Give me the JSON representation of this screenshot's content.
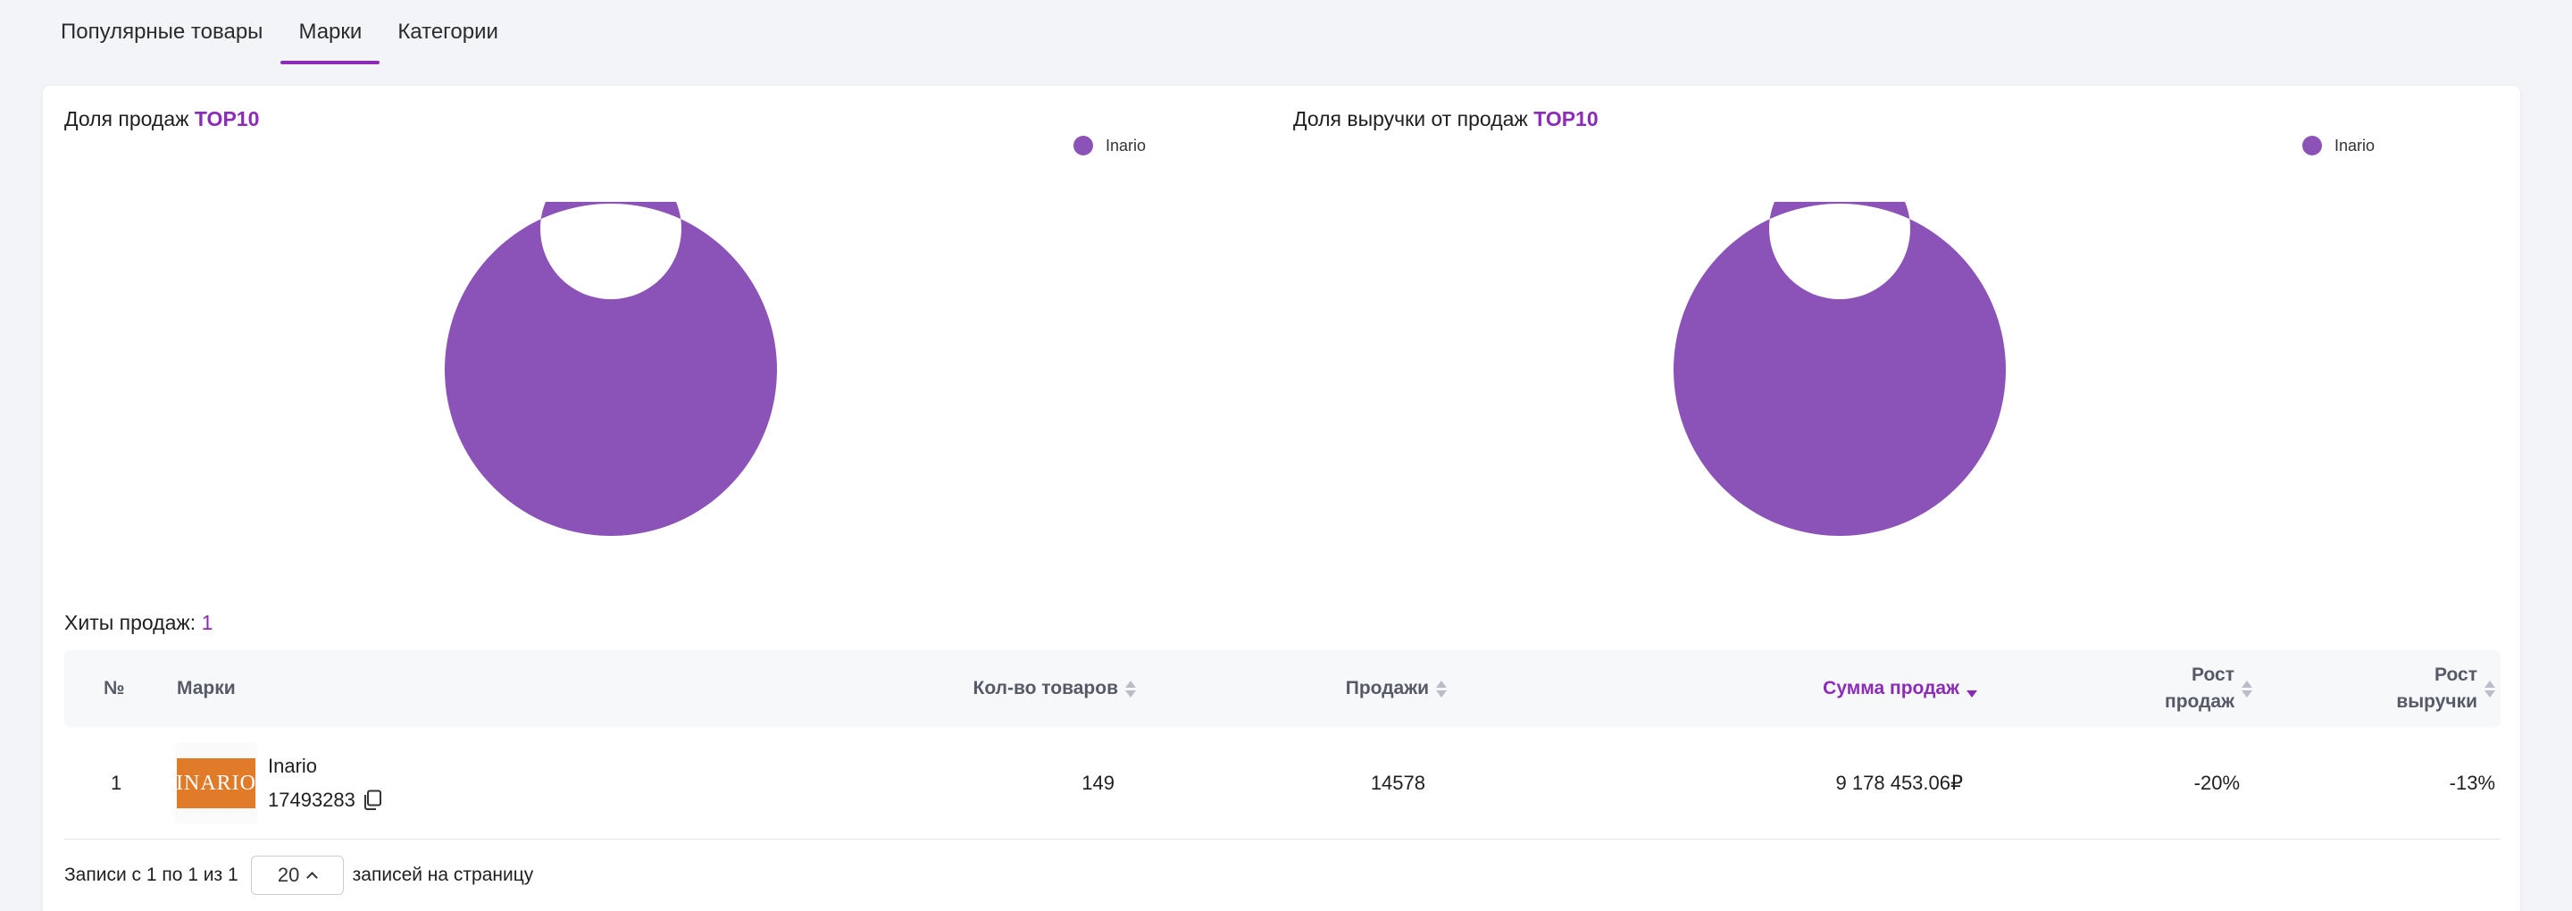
{
  "tabs": [
    {
      "label": "Популярные товары",
      "active": false
    },
    {
      "label": "Марки",
      "active": true
    },
    {
      "label": "Категории",
      "active": false
    }
  ],
  "charts": {
    "sales_share": {
      "title_prefix": "Доля продаж",
      "title_highlight": "TOP10"
    },
    "revenue_share": {
      "title_prefix": "Доля выручки от продаж",
      "title_highlight": "TOP10"
    }
  },
  "chart_data": [
    {
      "type": "pie",
      "title": "Доля продаж TOP10",
      "labels": [
        "Inario"
      ],
      "values": [
        100
      ],
      "colors": [
        "#8b52b8"
      ],
      "legend": "top-right",
      "donut": true
    },
    {
      "type": "pie",
      "title": "Доля выручки от продаж TOP10",
      "labels": [
        "Inario"
      ],
      "values": [
        100
      ],
      "colors": [
        "#8b52b8"
      ],
      "legend": "top-right",
      "donut": true
    }
  ],
  "hits": {
    "label": "Хиты продаж:",
    "count": "1"
  },
  "table": {
    "headers": {
      "num": "№",
      "brand": "Марки",
      "qty": "Кол-во товаров",
      "sales": "Продажи",
      "sum": "Сумма продаж",
      "growth_sales_1": "Рост",
      "growth_sales_2": "продаж",
      "growth_rev_1": "Рост",
      "growth_rev_2": "выручки"
    },
    "rows": [
      {
        "num": "1",
        "logo_text": "INARIO",
        "brand": "Inario",
        "brand_id": "17493283",
        "qty": "149",
        "sales": "14578",
        "sum": "9 178 453.06₽",
        "growth_sales": "-20%",
        "growth_revenue": "-13%"
      }
    ]
  },
  "footer": {
    "records": "Записи с 1 по 1 из 1",
    "per_page_value": "20",
    "per_page_suffix": "записей на страницу"
  },
  "colors": {
    "accent": "#8c2bb8",
    "slice": "#8b52b8",
    "chevron_icon": "chevron-up-icon",
    "copy_icon": "copy-icon"
  }
}
